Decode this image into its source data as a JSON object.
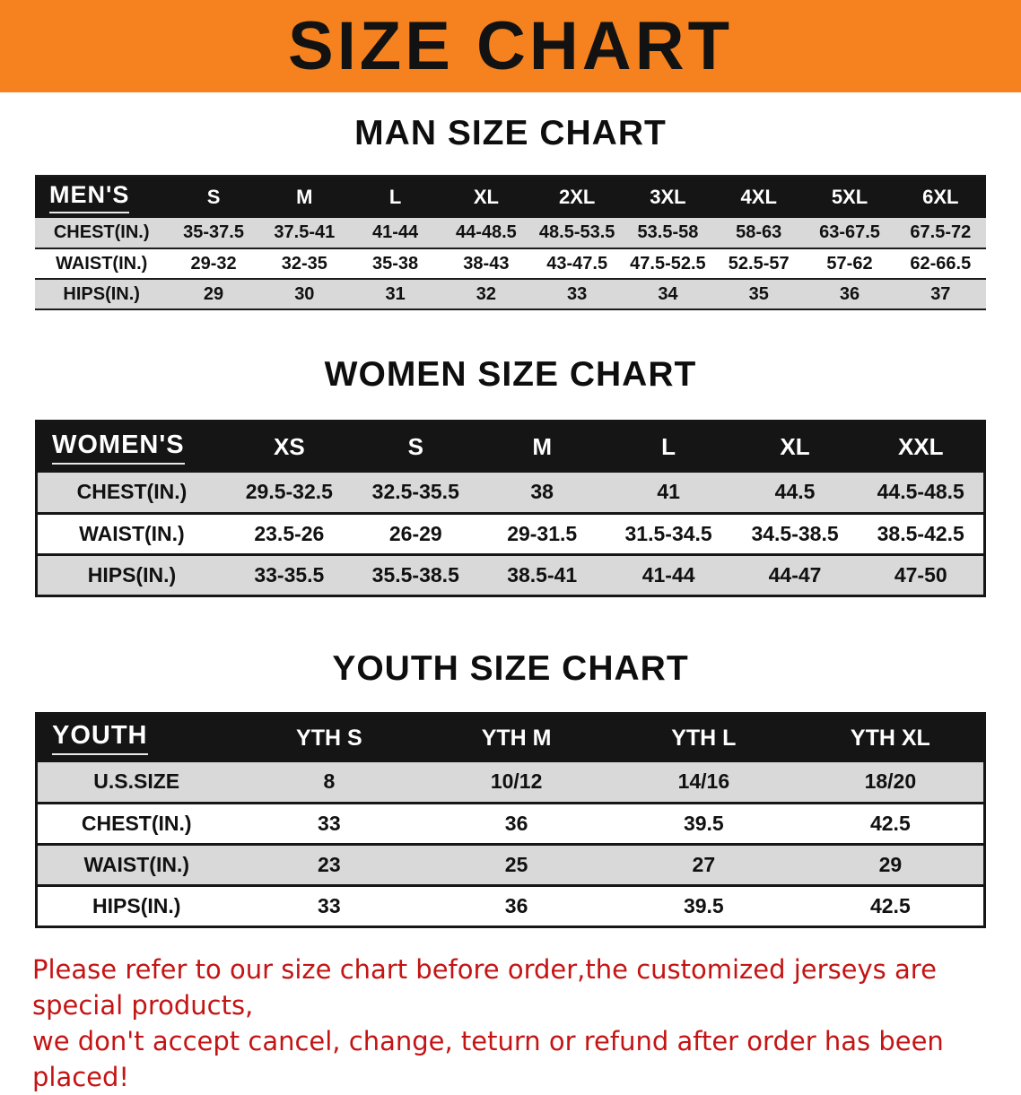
{
  "banner": {
    "title": "SIZE CHART"
  },
  "colors": {
    "banner_bg": "#F5821F",
    "header_bg": "#151515",
    "row_gray": "#D9D9D9",
    "note_red": "#C41414"
  },
  "tables": {
    "men": {
      "heading": "MAN SIZE CHART",
      "label": "MEN'S",
      "columns": [
        "S",
        "M",
        "L",
        "XL",
        "2XL",
        "3XL",
        "4XL",
        "5XL",
        "6XL"
      ],
      "rows": [
        {
          "label": "CHEST(IN.)",
          "values": [
            "35-37.5",
            "37.5-41",
            "41-44",
            "44-48.5",
            "48.5-53.5",
            "53.5-58",
            "58-63",
            "63-67.5",
            "67.5-72"
          ]
        },
        {
          "label": "WAIST(IN.)",
          "values": [
            "29-32",
            "32-35",
            "35-38",
            "38-43",
            "43-47.5",
            "47.5-52.5",
            "52.5-57",
            "57-62",
            "62-66.5"
          ]
        },
        {
          "label": "HIPS(IN.)",
          "values": [
            "29",
            "30",
            "31",
            "32",
            "33",
            "34",
            "35",
            "36",
            "37"
          ]
        }
      ]
    },
    "women": {
      "heading": "WOMEN SIZE CHART",
      "label": "WOMEN'S",
      "columns": [
        "XS",
        "S",
        "M",
        "L",
        "XL",
        "XXL"
      ],
      "rows": [
        {
          "label": "CHEST(IN.)",
          "values": [
            "29.5-32.5",
            "32.5-35.5",
            "38",
            "41",
            "44.5",
            "44.5-48.5"
          ]
        },
        {
          "label": "WAIST(IN.)",
          "values": [
            "23.5-26",
            "26-29",
            "29-31.5",
            "31.5-34.5",
            "34.5-38.5",
            "38.5-42.5"
          ]
        },
        {
          "label": "HIPS(IN.)",
          "values": [
            "33-35.5",
            "35.5-38.5",
            "38.5-41",
            "41-44",
            "44-47",
            "47-50"
          ]
        }
      ]
    },
    "youth": {
      "heading": "YOUTH SIZE CHART",
      "label": "YOUTH",
      "columns": [
        "YTH S",
        "YTH M",
        "YTH L",
        "YTH XL"
      ],
      "rows": [
        {
          "label": "U.S.SIZE",
          "values": [
            "8",
            "10/12",
            "14/16",
            "18/20"
          ]
        },
        {
          "label": "CHEST(IN.)",
          "values": [
            "33",
            "36",
            "39.5",
            "42.5"
          ]
        },
        {
          "label": "WAIST(IN.)",
          "values": [
            "23",
            "25",
            "27",
            "29"
          ]
        },
        {
          "label": "HIPS(IN.)",
          "values": [
            "33",
            "36",
            "39.5",
            "42.5"
          ]
        }
      ]
    }
  },
  "note": {
    "line1": "Please refer to our size chart before order,the customized jerseys are special products,",
    "line2": "we don't accept cancel, change, teturn or refund after order has been placed!"
  }
}
